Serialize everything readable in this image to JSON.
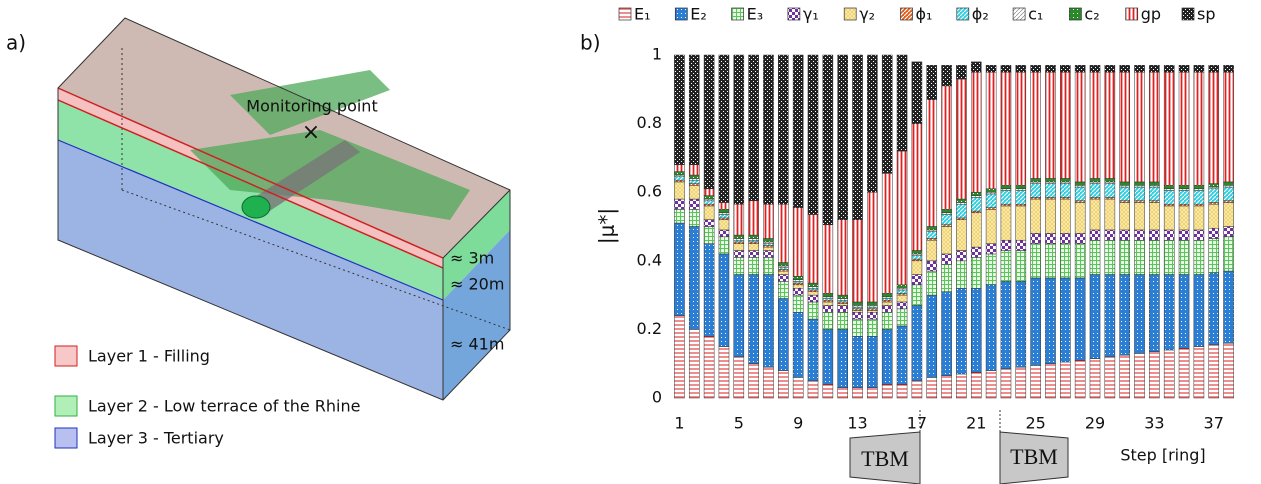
{
  "panel_labels": [
    "a)",
    "b)"
  ],
  "diagram": {
    "monitoring_label": "Monitoring point",
    "dimensions": [
      "≈ 3m",
      "≈ 20m",
      "≈ 41m"
    ],
    "legend": [
      "Layer 1 - Filling",
      "Layer 2 - Low terrace of the Rhine",
      "Layer 3 - Tertiary"
    ]
  },
  "chart_data": {
    "type": "stacked-bar",
    "y_label": "|μ*|",
    "x_label": "Step [ring]",
    "annotations": [
      "TBM",
      "TBM"
    ],
    "x": [
      1,
      2,
      3,
      4,
      5,
      6,
      7,
      8,
      9,
      10,
      11,
      12,
      13,
      14,
      15,
      16,
      17,
      18,
      19,
      20,
      21,
      22,
      23,
      24,
      25,
      26,
      27,
      28,
      29,
      30,
      31,
      32,
      33,
      34,
      35,
      36,
      37,
      38
    ],
    "xlim": [
      0.5,
      38.5
    ],
    "xticks": [
      1,
      5,
      9,
      13,
      17,
      21,
      25,
      29,
      33,
      37
    ],
    "ylim": [
      0,
      1
    ],
    "yticks": [
      0,
      0.2,
      0.4,
      0.6,
      0.8,
      1
    ],
    "grid": false,
    "legend": "top",
    "series": [
      {
        "name": "E₁",
        "color": "#e03030",
        "hatch": "hline",
        "values": [
          0.24,
          0.2,
          0.18,
          0.15,
          0.12,
          0.1,
          0.09,
          0.08,
          0.06,
          0.05,
          0.04,
          0.03,
          0.03,
          0.03,
          0.04,
          0.04,
          0.05,
          0.06,
          0.065,
          0.07,
          0.075,
          0.08,
          0.085,
          0.09,
          0.095,
          0.1,
          0.105,
          0.11,
          0.115,
          0.12,
          0.125,
          0.13,
          0.135,
          0.14,
          0.145,
          0.15,
          0.155,
          0.16
        ]
      },
      {
        "name": "E₂",
        "color": "#2a7fd4",
        "hatch": "dots",
        "values": [
          0.27,
          0.3,
          0.27,
          0.27,
          0.24,
          0.26,
          0.27,
          0.21,
          0.19,
          0.18,
          0.16,
          0.17,
          0.15,
          0.15,
          0.16,
          0.17,
          0.22,
          0.24,
          0.245,
          0.25,
          0.245,
          0.25,
          0.255,
          0.25,
          0.255,
          0.25,
          0.245,
          0.24,
          0.245,
          0.24,
          0.235,
          0.23,
          0.225,
          0.22,
          0.215,
          0.21,
          0.21,
          0.21
        ]
      },
      {
        "name": "E₃",
        "color": "#5cc45c",
        "hatch": "grid",
        "values": [
          0.04,
          0.05,
          0.05,
          0.05,
          0.05,
          0.05,
          0.05,
          0.05,
          0.05,
          0.05,
          0.05,
          0.05,
          0.05,
          0.05,
          0.05,
          0.05,
          0.06,
          0.07,
          0.08,
          0.08,
          0.09,
          0.09,
          0.09,
          0.09,
          0.1,
          0.1,
          0.1,
          0.1,
          0.1,
          0.1,
          0.1,
          0.1,
          0.1,
          0.1,
          0.1,
          0.1,
          0.1,
          0.1
        ]
      },
      {
        "name": "γ₁",
        "color": "#7030a0",
        "hatch": "checker",
        "values": [
          0.03,
          0.03,
          0.02,
          0.02,
          0.02,
          0.02,
          0.02,
          0.02,
          0.02,
          0.02,
          0.02,
          0.02,
          0.02,
          0.02,
          0.02,
          0.02,
          0.03,
          0.03,
          0.03,
          0.03,
          0.03,
          0.03,
          0.03,
          0.03,
          0.03,
          0.03,
          0.03,
          0.03,
          0.03,
          0.03,
          0.03,
          0.03,
          0.03,
          0.03,
          0.03,
          0.03,
          0.03,
          0.03
        ]
      },
      {
        "name": "γ₂",
        "color": "#e8c860",
        "hatch": "crosshatch",
        "values": [
          0.05,
          0.04,
          0.04,
          0.03,
          0.02,
          0.02,
          0.01,
          0.01,
          0.01,
          0.01,
          0.01,
          0.005,
          0.005,
          0.005,
          0.01,
          0.02,
          0.04,
          0.06,
          0.08,
          0.09,
          0.1,
          0.1,
          0.1,
          0.1,
          0.1,
          0.1,
          0.1,
          0.09,
          0.09,
          0.09,
          0.08,
          0.08,
          0.08,
          0.07,
          0.07,
          0.07,
          0.07,
          0.07
        ]
      },
      {
        "name": "ϕ₁",
        "color": "#e06020",
        "hatch": "diag",
        "values": [
          0.005,
          0.005,
          0.005,
          0.005,
          0.005,
          0.005,
          0.005,
          0.005,
          0.005,
          0.005,
          0.005,
          0.005,
          0.005,
          0.005,
          0.005,
          0.005,
          0.005,
          0.005,
          0.005,
          0.005,
          0.005,
          0.005,
          0.005,
          0.005,
          0.005,
          0.005,
          0.005,
          0.005,
          0.005,
          0.005,
          0.005,
          0.005,
          0.005,
          0.005,
          0.005,
          0.005,
          0.005,
          0.005
        ]
      },
      {
        "name": "ϕ₂",
        "color": "#30d0e0",
        "hatch": "diag",
        "values": [
          0.01,
          0.01,
          0.01,
          0.01,
          0.005,
          0.005,
          0.005,
          0.005,
          0.005,
          0.005,
          0.005,
          0.005,
          0.005,
          0.005,
          0.005,
          0.01,
          0.01,
          0.02,
          0.03,
          0.04,
          0.04,
          0.04,
          0.04,
          0.04,
          0.04,
          0.04,
          0.04,
          0.04,
          0.04,
          0.04,
          0.04,
          0.04,
          0.04,
          0.04,
          0.04,
          0.04,
          0.04,
          0.04
        ]
      },
      {
        "name": "c₁",
        "color": "#888888",
        "hatch": "diag-light",
        "values": [
          0.005,
          0.005,
          0.005,
          0.005,
          0.005,
          0.005,
          0.005,
          0.005,
          0.005,
          0.005,
          0.005,
          0.005,
          0.005,
          0.005,
          0.005,
          0.005,
          0.005,
          0.005,
          0.005,
          0.005,
          0.005,
          0.005,
          0.005,
          0.005,
          0.005,
          0.005,
          0.005,
          0.005,
          0.005,
          0.005,
          0.005,
          0.005,
          0.005,
          0.005,
          0.005,
          0.005,
          0.005,
          0.005
        ]
      },
      {
        "name": "c₂",
        "color": "#2a8a2a",
        "hatch": "dots",
        "values": [
          0.01,
          0.01,
          0.01,
          0.01,
          0.01,
          0.01,
          0.01,
          0.01,
          0.01,
          0.01,
          0.01,
          0.01,
          0.01,
          0.01,
          0.01,
          0.01,
          0.01,
          0.01,
          0.01,
          0.01,
          0.01,
          0.01,
          0.01,
          0.01,
          0.01,
          0.01,
          0.01,
          0.01,
          0.01,
          0.01,
          0.01,
          0.01,
          0.01,
          0.01,
          0.01,
          0.01,
          0.01,
          0.01
        ]
      },
      {
        "name": "gp",
        "color": "#e02020",
        "hatch": "vline",
        "values": [
          0.02,
          0.03,
          0.02,
          0.02,
          0.09,
          0.1,
          0.1,
          0.17,
          0.2,
          0.2,
          0.2,
          0.22,
          0.24,
          0.32,
          0.35,
          0.39,
          0.37,
          0.37,
          0.36,
          0.35,
          0.35,
          0.34,
          0.33,
          0.33,
          0.31,
          0.31,
          0.31,
          0.32,
          0.31,
          0.31,
          0.32,
          0.32,
          0.32,
          0.33,
          0.33,
          0.33,
          0.325,
          0.32
        ]
      },
      {
        "name": "sp",
        "color": "#222222",
        "hatch": "dense-checker",
        "values": [
          0.32,
          0.32,
          0.39,
          0.43,
          0.435,
          0.425,
          0.435,
          0.435,
          0.445,
          0.465,
          0.495,
          0.48,
          0.48,
          0.4,
          0.345,
          0.28,
          0.18,
          0.1,
          0.06,
          0.04,
          0.03,
          0.02,
          0.02,
          0.02,
          0.02,
          0.02,
          0.02,
          0.02,
          0.02,
          0.02,
          0.02,
          0.02,
          0.02,
          0.02,
          0.02,
          0.02,
          0.02,
          0.02
        ]
      }
    ]
  }
}
